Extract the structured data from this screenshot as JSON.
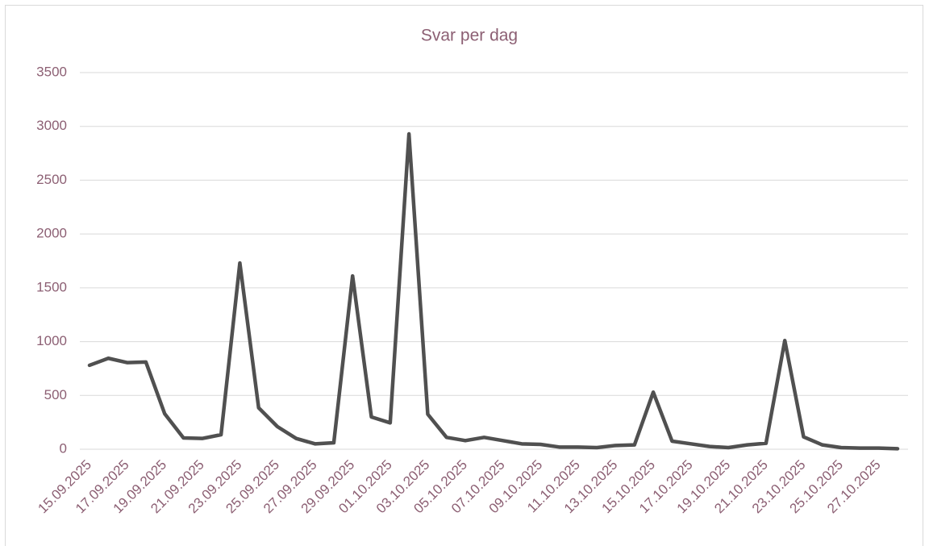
{
  "chart_data": {
    "type": "line",
    "title": "Svar per dag",
    "categories": [
      "15.09.2025",
      null,
      "17.09.2025",
      null,
      "19.09.2025",
      null,
      "21.09.2025",
      null,
      "23.09.2025",
      null,
      "25.09.2025",
      null,
      "27.09.2025",
      null,
      "29.09.2025",
      null,
      "01.10.2025",
      null,
      "03.10.2025",
      null,
      "05.10.2025",
      null,
      "07.10.2025",
      null,
      "09.10.2025",
      null,
      "11.10.2025",
      null,
      "13.10.2025",
      null,
      "15.10.2025",
      null,
      "17.10.2025",
      null,
      "19.10.2025",
      null,
      "21.10.2025",
      null,
      "23.10.2025",
      null,
      "25.10.2025",
      null,
      "27.10.2025",
      null
    ],
    "values": [
      780,
      845,
      805,
      810,
      330,
      105,
      100,
      135,
      1730,
      385,
      210,
      100,
      50,
      60,
      1610,
      300,
      245,
      2930,
      325,
      110,
      80,
      110,
      80,
      50,
      45,
      20,
      20,
      15,
      35,
      40,
      530,
      75,
      50,
      25,
      15,
      40,
      55,
      1010,
      115,
      40,
      15,
      10,
      10,
      5
    ],
    "color": "#505050",
    "ylim": [
      0,
      3500
    ],
    "yticks": [
      0,
      500,
      1000,
      1500,
      2000,
      2500,
      3000,
      3500
    ],
    "grid": true
  }
}
